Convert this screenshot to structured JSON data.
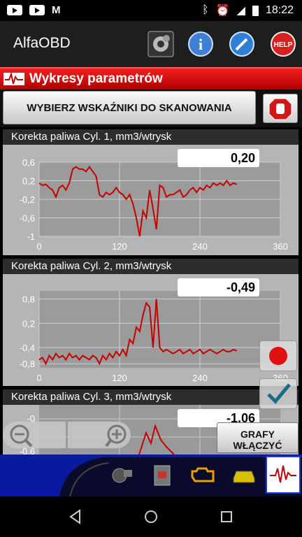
{
  "status_bar": {
    "time": "18:22"
  },
  "app": {
    "title": "AlfaOBD"
  },
  "toolbar": {
    "help_label": "HELP"
  },
  "screen": {
    "title": "Wykresy parametrów",
    "select_button": "WYBIERZ WSKAŹNIKI DO SKANOWANIA"
  },
  "panels": [
    {
      "label": "Korekta paliwa Cyl. 1, mm3/wtrysk",
      "value": "0,20",
      "y_ticks": [
        "0,6",
        "0,2",
        "-0,2",
        "-0,6",
        "-1"
      ],
      "x_ticks": [
        "0",
        "120",
        "240",
        "360"
      ],
      "chart_data": {
        "type": "line",
        "ylim": [
          -1.0,
          0.6
        ],
        "xlim": [
          0,
          360
        ],
        "series": [
          {
            "x": [
              0,
              5,
              10,
              15,
              20,
              25,
              30,
              35,
              40,
              45,
              50,
              55,
              60,
              65,
              70,
              75,
              80,
              85,
              90,
              95,
              100,
              105,
              110,
              115,
              120,
              125,
              130,
              135,
              140,
              145,
              150,
              155,
              160,
              165,
              170,
              175,
              180,
              185,
              190,
              195,
              200,
              205,
              210,
              215,
              220,
              225,
              230,
              235,
              240,
              245,
              250,
              255,
              260,
              265,
              270,
              275,
              280,
              285,
              290,
              295
            ],
            "y": [
              0.15,
              0.1,
              0.12,
              0.05,
              0.0,
              -0.15,
              0.05,
              0.1,
              0.0,
              0.15,
              0.45,
              0.5,
              0.45,
              0.45,
              0.4,
              0.5,
              0.4,
              0.3,
              -0.1,
              -0.15,
              -0.05,
              -0.1,
              -0.05,
              0.05,
              -0.05,
              -0.1,
              -0.2,
              -0.1,
              -0.3,
              -0.6,
              -1.0,
              -0.45,
              -0.6,
              0.0,
              -0.4,
              -0.85,
              0.1,
              0.05,
              -0.15,
              -0.1,
              -0.1,
              -0.05,
              0.0,
              -0.15,
              -0.1,
              0.0,
              0.05,
              -0.05,
              0.05,
              0.0,
              0.1,
              0.05,
              0.15,
              0.1,
              0.15,
              0.1,
              0.2,
              0.1,
              0.15,
              0.12
            ]
          }
        ]
      }
    },
    {
      "label": "Korekta paliwa Cyl. 2, mm3/wtrysk",
      "value": "-0,49",
      "y_ticks": [
        "0,8",
        "0,2",
        "-0,4",
        "-0,8"
      ],
      "x_ticks": [
        "0",
        "120",
        "240",
        "360"
      ],
      "chart_data": {
        "type": "line",
        "ylim": [
          -0.9,
          1.0
        ],
        "xlim": [
          0,
          360
        ],
        "series": [
          {
            "x": [
              0,
              5,
              10,
              15,
              20,
              25,
              30,
              35,
              40,
              45,
              50,
              55,
              60,
              65,
              70,
              75,
              80,
              85,
              90,
              95,
              100,
              105,
              110,
              115,
              120,
              125,
              130,
              135,
              140,
              145,
              150,
              155,
              160,
              165,
              170,
              175,
              180,
              185,
              190,
              195,
              200,
              205,
              210,
              215,
              220,
              225,
              230,
              235,
              240,
              245,
              250,
              255,
              260,
              265,
              270,
              275,
              280,
              285,
              290,
              295
            ],
            "y": [
              -0.7,
              -0.65,
              -0.8,
              -0.6,
              -0.7,
              -0.55,
              -0.65,
              -0.6,
              -0.7,
              -0.55,
              -0.65,
              -0.6,
              -0.7,
              -0.6,
              -0.65,
              -0.7,
              -0.6,
              -0.65,
              -0.8,
              -0.6,
              -0.7,
              -0.55,
              -0.65,
              -0.5,
              -0.6,
              -0.45,
              -0.6,
              -0.2,
              -0.3,
              0.1,
              0.0,
              0.4,
              0.7,
              0.6,
              -0.4,
              0.8,
              -0.4,
              -0.5,
              -0.45,
              -0.5,
              -0.55,
              -0.5,
              -0.45,
              -0.55,
              -0.5,
              -0.45,
              -0.55,
              -0.5,
              -0.45,
              -0.55,
              -0.5,
              -0.45,
              -0.5,
              -0.55,
              -0.5,
              -0.45,
              -0.5,
              -0.5,
              -0.45,
              -0.48
            ]
          }
        ]
      }
    },
    {
      "label": "Korekta paliwa Cyl. 3, mm3/wtrysk",
      "value": "-1,06",
      "y_ticks": [
        "-0",
        "-0,6"
      ],
      "x_ticks": []
    }
  ],
  "grafy_button": "GRAFY WŁĄCZYĆ",
  "colors": {
    "accent_red": "#d11a1a",
    "bottom_bar": "#091aa0",
    "line": "#c40000"
  }
}
